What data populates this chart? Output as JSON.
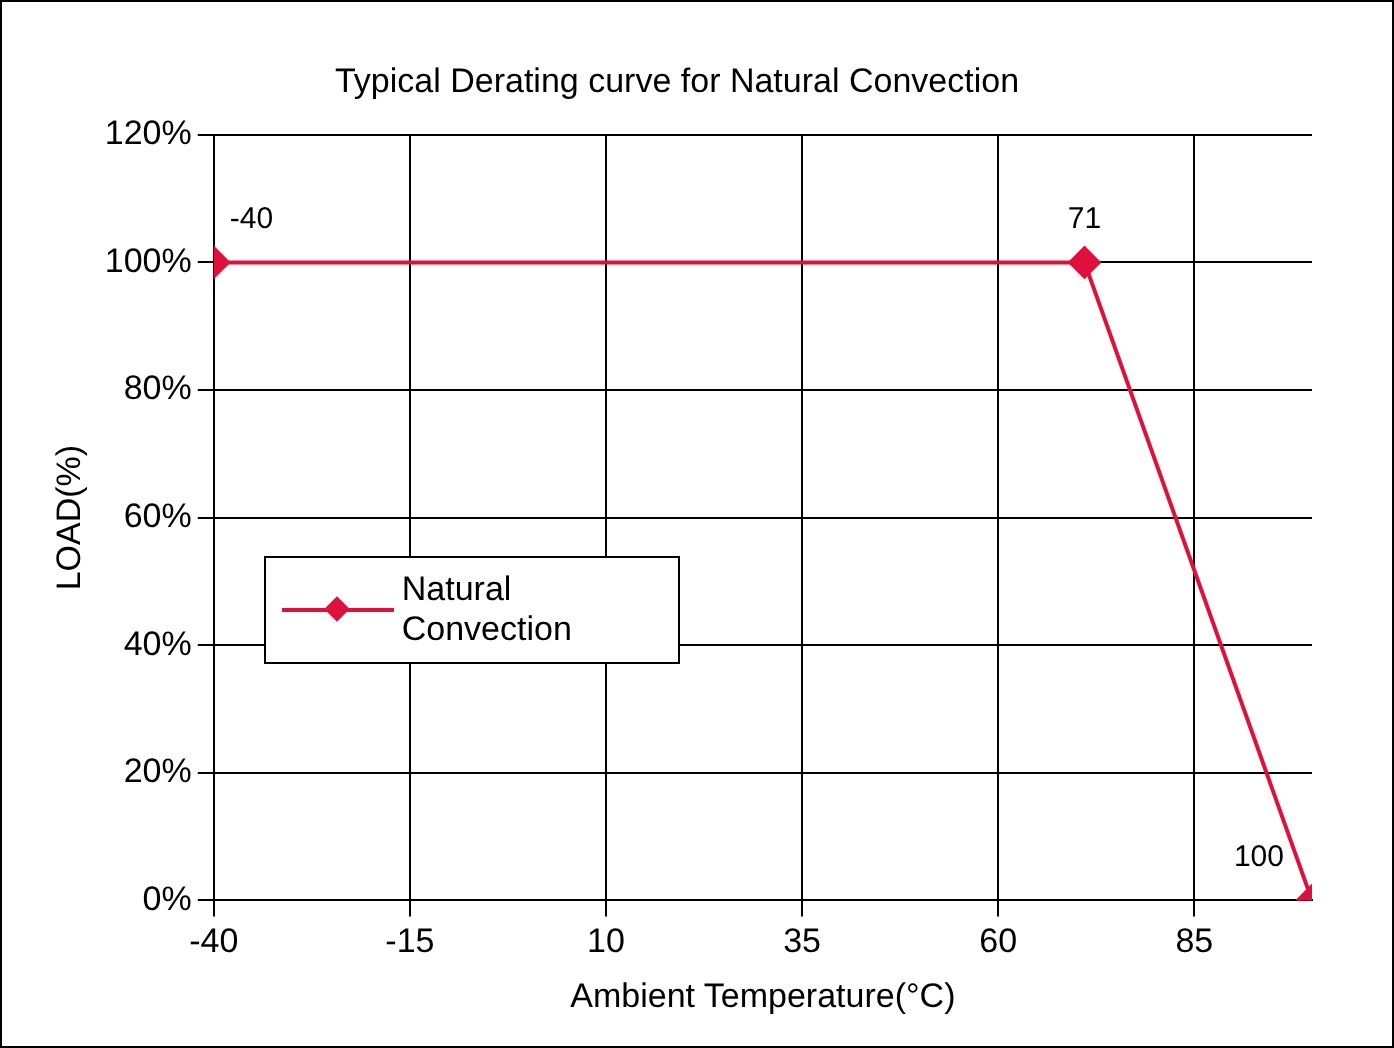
{
  "chart_data": {
    "type": "line",
    "title": "Typical Derating curve for Natural Convection",
    "xlabel": "Ambient Temperature(°C)",
    "ylabel": "LOAD(%)",
    "x": [
      -40,
      71,
      100
    ],
    "series": [
      {
        "name": "Natural Convection",
        "color": "#e0103c",
        "values": [
          100,
          100,
          0
        ]
      }
    ],
    "xlim": [
      -40,
      100
    ],
    "xticks": [
      -40,
      -15,
      10,
      35,
      60,
      85
    ],
    "ylim": [
      0,
      120
    ],
    "yticks": [
      {
        "value": 0,
        "label": "0%"
      },
      {
        "value": 20,
        "label": "20%"
      },
      {
        "value": 40,
        "label": "40%"
      },
      {
        "value": 60,
        "label": "60%"
      },
      {
        "value": 80,
        "label": "80%"
      },
      {
        "value": 100,
        "label": "100%"
      },
      {
        "value": 120,
        "label": "120%"
      }
    ],
    "annotations": [
      {
        "text": "-40",
        "x": -40,
        "y": 100
      },
      {
        "text": "71",
        "x": 71,
        "y": 100
      },
      {
        "text": "100",
        "x": 100,
        "y": 0
      }
    ],
    "grid": true,
    "legend": "left",
    "marker": "diamond",
    "line_style": "solid"
  }
}
